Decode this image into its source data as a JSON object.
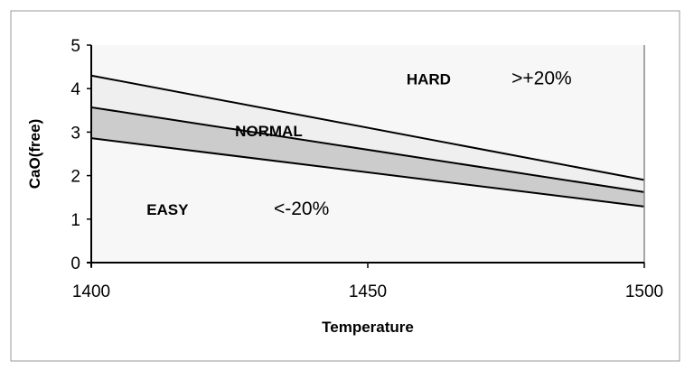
{
  "chart_data": {
    "type": "area",
    "title": "",
    "xlabel": "Temperature",
    "ylabel": "CaO(free)",
    "xlim": [
      1400,
      1500
    ],
    "ylim": [
      0,
      5
    ],
    "xticks": [
      "1400",
      "1450",
      "1500"
    ],
    "yticks": [
      "0",
      "1",
      "2",
      "3",
      "4",
      "5"
    ],
    "grid": false,
    "lines": [
      {
        "x": [
          1400,
          1500
        ],
        "y": [
          4.3,
          1.9
        ]
      },
      {
        "x": [
          1400,
          1500
        ],
        "y": [
          3.57,
          1.62
        ]
      },
      {
        "x": [
          1400,
          1500
        ],
        "y": [
          2.86,
          1.29
        ]
      }
    ],
    "band_colors": {
      "background": "#f7f7f7",
      "upper_band": "#efefef",
      "lower_band": "#cccccc"
    },
    "annotations": [
      {
        "text": "HARD",
        "x": 1457,
        "y": 4.1,
        "bold": true
      },
      {
        "text": ">+20%",
        "x": 1476,
        "y": 4.1,
        "bold": false
      },
      {
        "text": "NORMAL",
        "x": 1426,
        "y": 2.9,
        "bold": true
      },
      {
        "text": "EASY",
        "x": 1410,
        "y": 1.1,
        "bold": true
      },
      {
        "text": "<-20%",
        "x": 1433,
        "y": 1.1,
        "bold": false
      }
    ]
  }
}
